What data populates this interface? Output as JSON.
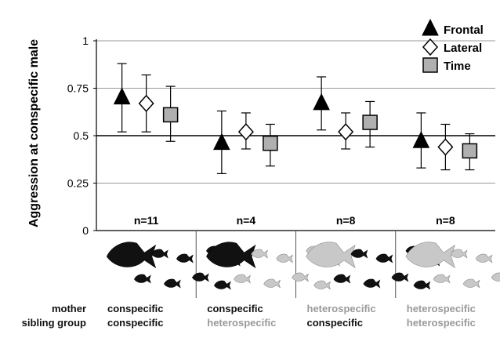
{
  "chart_data": {
    "type": "scatter",
    "ylabel": "Aggression at conspecific male",
    "ylim": [
      0,
      1
    ],
    "yticks": [
      {
        "value": 0,
        "label": "0"
      },
      {
        "value": 0.25,
        "label": "0.25"
      },
      {
        "value": 0.5,
        "label": "0.5"
      },
      {
        "value": 0.75,
        "label": "0.75"
      },
      {
        "value": 1,
        "label": "1"
      }
    ],
    "reference_line": 0.5,
    "grid": true,
    "legend_position": "top-right",
    "groups": [
      {
        "n_label": "n=11",
        "mother": "conspecific",
        "mother_color": "#111111",
        "sibling": "conspecific",
        "sibling_color": "#111111",
        "drawing": "black-mother-black-siblings"
      },
      {
        "n_label": "n=4",
        "mother": "conspecific",
        "mother_color": "#111111",
        "sibling": "heterospecific",
        "sibling_color": "#9a9a9a",
        "drawing": "black-mother-grey-siblings"
      },
      {
        "n_label": "n=8",
        "mother": "heterospecific",
        "mother_color": "#9a9a9a",
        "sibling": "conspecific",
        "sibling_color": "#111111",
        "drawing": "grey-mother-black-siblings"
      },
      {
        "n_label": "n=8",
        "mother": "heterospecific",
        "mother_color": "#9a9a9a",
        "sibling": "heterospecific",
        "sibling_color": "#9a9a9a",
        "drawing": "grey-mother-grey-siblings"
      }
    ],
    "series": [
      {
        "name": "Frontal",
        "marker": "filled-triangle",
        "color": "#000000",
        "values": [
          0.7,
          0.46,
          0.67,
          0.47
        ],
        "err_low": [
          0.52,
          0.3,
          0.53,
          0.33
        ],
        "err_high": [
          0.88,
          0.63,
          0.81,
          0.62
        ]
      },
      {
        "name": "Lateral",
        "marker": "open-diamond",
        "color": "#000000",
        "values": [
          0.67,
          0.52,
          0.52,
          0.44
        ],
        "err_low": [
          0.52,
          0.43,
          0.43,
          0.32
        ],
        "err_high": [
          0.82,
          0.62,
          0.62,
          0.56
        ]
      },
      {
        "name": "Time",
        "marker": "grey-square",
        "color": "#b0b0b0",
        "values": [
          0.61,
          0.46,
          0.57,
          0.42
        ],
        "err_low": [
          0.47,
          0.34,
          0.44,
          0.32
        ],
        "err_high": [
          0.76,
          0.56,
          0.68,
          0.51
        ]
      }
    ]
  },
  "row_labels": {
    "mother": "mother",
    "sibling": "sibling group"
  },
  "colors": {
    "fish_black": "#111111",
    "fish_grey": "#c8c8c8",
    "grid": "#9a9a9a"
  }
}
